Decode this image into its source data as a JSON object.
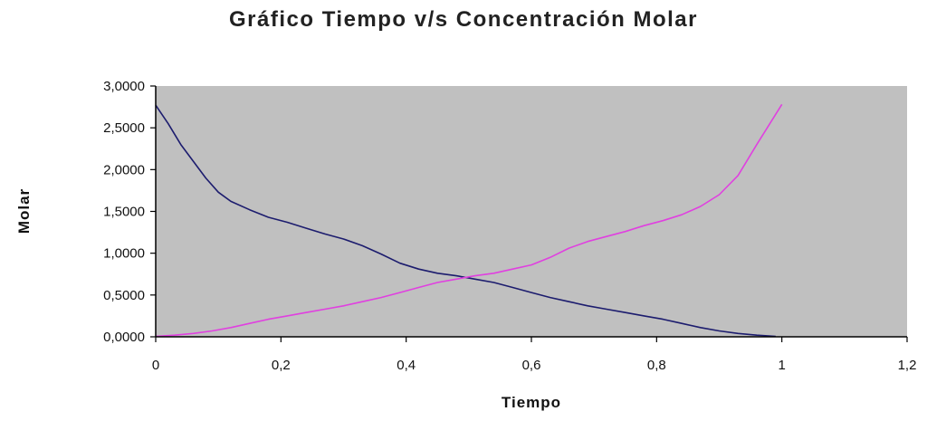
{
  "chart_data": {
    "type": "line",
    "title": "Gráfico Tiempo v/s Concentración Molar",
    "xlabel": "Tiempo",
    "ylabel": "Molar",
    "xlim": [
      0,
      1.2
    ],
    "ylim": [
      0,
      3
    ],
    "x_ticks": [
      "0",
      "0,2",
      "0,4",
      "0,6",
      "0,8",
      "1",
      "1,2"
    ],
    "y_ticks": [
      "0,0000",
      "0,5000",
      "1,0000",
      "1,5000",
      "2,0000",
      "2,5000",
      "3,0000"
    ],
    "grid": false,
    "legend": "none",
    "colors": {
      "plot_bg": "#c0c0c0",
      "series_1": "#1c1c6e",
      "series_2": "#e040e0"
    },
    "series": [
      {
        "color": "#1c1c6e",
        "points": [
          [
            0,
            2.77
          ],
          [
            0.02,
            2.55
          ],
          [
            0.04,
            2.3
          ],
          [
            0.06,
            2.1
          ],
          [
            0.08,
            1.9
          ],
          [
            0.1,
            1.73
          ],
          [
            0.12,
            1.62
          ],
          [
            0.15,
            1.52
          ],
          [
            0.18,
            1.43
          ],
          [
            0.21,
            1.37
          ],
          [
            0.24,
            1.3
          ],
          [
            0.27,
            1.23
          ],
          [
            0.3,
            1.17
          ],
          [
            0.33,
            1.09
          ],
          [
            0.36,
            0.99
          ],
          [
            0.39,
            0.88
          ],
          [
            0.42,
            0.81
          ],
          [
            0.45,
            0.76
          ],
          [
            0.48,
            0.73
          ],
          [
            0.51,
            0.69
          ],
          [
            0.54,
            0.65
          ],
          [
            0.57,
            0.59
          ],
          [
            0.6,
            0.53
          ],
          [
            0.63,
            0.47
          ],
          [
            0.66,
            0.42
          ],
          [
            0.69,
            0.37
          ],
          [
            0.72,
            0.33
          ],
          [
            0.75,
            0.29
          ],
          [
            0.78,
            0.25
          ],
          [
            0.81,
            0.21
          ],
          [
            0.84,
            0.16
          ],
          [
            0.87,
            0.11
          ],
          [
            0.9,
            0.07
          ],
          [
            0.93,
            0.04
          ],
          [
            0.96,
            0.02
          ],
          [
            0.99,
            0.005
          ]
        ]
      },
      {
        "color": "#e040e0",
        "points": [
          [
            0,
            0.005
          ],
          [
            0.03,
            0.02
          ],
          [
            0.06,
            0.04
          ],
          [
            0.09,
            0.07
          ],
          [
            0.12,
            0.11
          ],
          [
            0.15,
            0.16
          ],
          [
            0.18,
            0.21
          ],
          [
            0.21,
            0.25
          ],
          [
            0.24,
            0.29
          ],
          [
            0.27,
            0.33
          ],
          [
            0.3,
            0.37
          ],
          [
            0.33,
            0.42
          ],
          [
            0.36,
            0.47
          ],
          [
            0.39,
            0.53
          ],
          [
            0.42,
            0.59
          ],
          [
            0.45,
            0.65
          ],
          [
            0.48,
            0.69
          ],
          [
            0.51,
            0.73
          ],
          [
            0.54,
            0.76
          ],
          [
            0.57,
            0.81
          ],
          [
            0.6,
            0.86
          ],
          [
            0.63,
            0.95
          ],
          [
            0.66,
            1.06
          ],
          [
            0.69,
            1.14
          ],
          [
            0.72,
            1.2
          ],
          [
            0.75,
            1.26
          ],
          [
            0.78,
            1.33
          ],
          [
            0.81,
            1.39
          ],
          [
            0.84,
            1.46
          ],
          [
            0.87,
            1.56
          ],
          [
            0.9,
            1.7
          ],
          [
            0.93,
            1.93
          ],
          [
            0.96,
            2.3
          ],
          [
            1.0,
            2.78
          ]
        ]
      }
    ]
  }
}
